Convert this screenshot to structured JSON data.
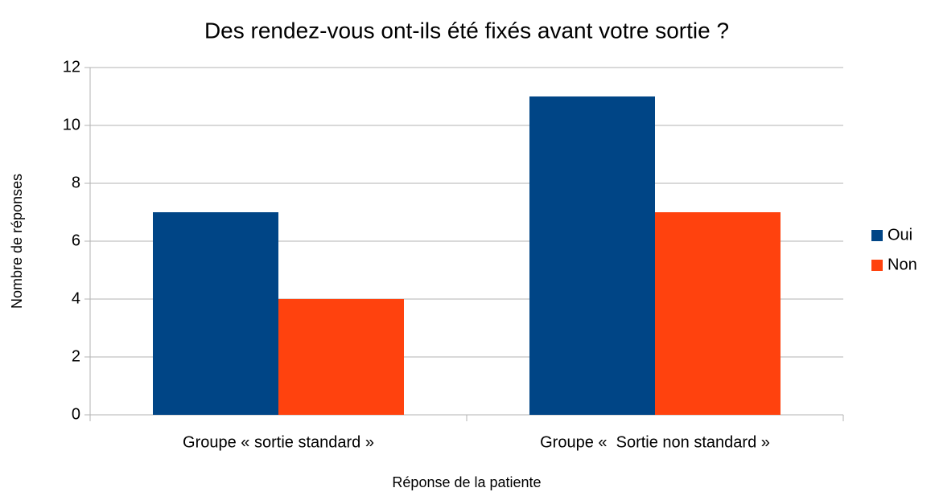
{
  "chart_data": {
    "type": "bar",
    "title": "Des rendez-vous ont-ils été fixés avant votre sortie ?",
    "x_label": "Réponse de la patiente",
    "y_label": "Nombre de réponses",
    "categories": [
      "Groupe « sortie standard »",
      "Groupe «  Sortie non standard »"
    ],
    "series": [
      {
        "name": "Oui",
        "color": "#004586",
        "values": [
          7,
          11
        ]
      },
      {
        "name": "Non",
        "color": "#ff420e",
        "values": [
          4,
          7
        ]
      }
    ],
    "ylim": [
      0,
      12
    ],
    "yticks": [
      0,
      2,
      4,
      6,
      8,
      10,
      12
    ],
    "grid": true,
    "legend": "right"
  }
}
